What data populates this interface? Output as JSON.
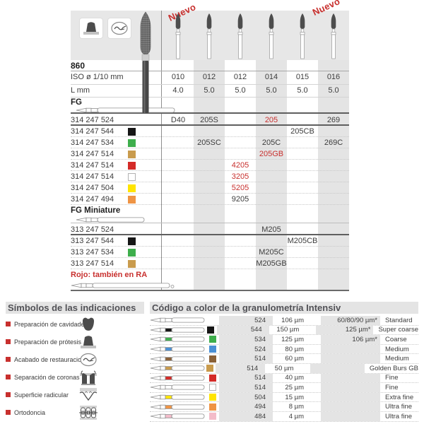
{
  "colors": {
    "red": "#c8302e",
    "chip": {
      "black": "#161616",
      "green": "#3eae4c",
      "gold": "#c99b4d",
      "red": "#d42b28",
      "white": "#ffffff",
      "yellow": "#ffe400",
      "orange": "#ef9444",
      "blue": "#4a90d5",
      "brown": "#8a6138",
      "pink": "#f3bcc9"
    }
  },
  "banner": {
    "nuevo_label": "Nuevo"
  },
  "table": {
    "model": "860",
    "iso_label": "ISO ø 1/10 mm",
    "iso_values": [
      "010",
      "012",
      "012",
      "014",
      "015",
      "016"
    ],
    "l_label": "L mm",
    "l_values": [
      "4.0",
      "5.0",
      "5.0",
      "5.0",
      "5.0",
      "5.0"
    ],
    "fg_label": "FG",
    "fg_rows": [
      {
        "code": "314 247 524",
        "chip": null,
        "heavy": true,
        "values": [
          {
            "col": 1,
            "text": "D40"
          },
          {
            "col": 2,
            "text": "205S"
          },
          {
            "col": 4,
            "text": "205",
            "red": true
          },
          {
            "col": 6,
            "text": "269"
          }
        ]
      },
      {
        "code": "314 247 544",
        "chip": "black",
        "values": [
          {
            "col": 5,
            "text": "205CB"
          }
        ]
      },
      {
        "code": "314 247 534",
        "chip": "green",
        "values": [
          {
            "col": 2,
            "text": "205SC"
          },
          {
            "col": 4,
            "text": "205C"
          },
          {
            "col": 6,
            "text": "269C"
          }
        ]
      },
      {
        "code": "314 247 514",
        "chip": "gold",
        "values": [
          {
            "col": 4,
            "text": "205GB",
            "red": true
          }
        ]
      },
      {
        "code": "314 247 514",
        "chip": "red",
        "values": [
          {
            "col": 3,
            "text": "4205",
            "red": true
          }
        ]
      },
      {
        "code": "314 247 514",
        "chip": "white",
        "values": [
          {
            "col": 3,
            "text": "3205",
            "red": true
          }
        ]
      },
      {
        "code": "314 247 504",
        "chip": "yellow",
        "values": [
          {
            "col": 3,
            "text": "5205",
            "red": true
          }
        ]
      },
      {
        "code": "314 247 494",
        "chip": "orange",
        "values": [
          {
            "col": 3,
            "text": "9205"
          }
        ]
      }
    ],
    "fg_miniature_label": "FG Miniature",
    "fgm_rows": [
      {
        "code": "313 247 524",
        "chip": null,
        "heavy": true,
        "values": [
          {
            "col": 4,
            "text": "M205"
          }
        ]
      },
      {
        "code": "313 247 544",
        "chip": "black",
        "values": [
          {
            "col": 5,
            "text": "M205CB"
          }
        ]
      },
      {
        "code": "313 247 534",
        "chip": "green",
        "values": [
          {
            "col": 4,
            "text": "M205C"
          }
        ]
      },
      {
        "code": "313 247 514",
        "chip": "gold",
        "values": [
          {
            "col": 4,
            "text": "M205GB"
          }
        ]
      }
    ],
    "note_red": "Rojo: también en RA"
  },
  "symbols": {
    "title": "Símbolos de las indicaciones",
    "items": [
      {
        "label": "Preparación de cavidades",
        "icon": "cavity-prep-icon"
      },
      {
        "label": "Preparación de prótesis",
        "icon": "prosthesis-prep-icon"
      },
      {
        "label": "Acabado de restauraciones",
        "icon": "restoration-finish-icon"
      },
      {
        "label": "Separación de coronas",
        "icon": "crown-separation-icon"
      },
      {
        "label": "Superficie radicular",
        "icon": "root-surface-icon"
      },
      {
        "label": "Ortodoncia",
        "icon": "orthodontics-icon"
      }
    ]
  },
  "granulometry": {
    "title": "Código a color de la granulometría Intensiv",
    "rows": [
      {
        "chip": null,
        "code": "524",
        "size": "106 µm",
        "alt": "60/80/90 µm*",
        "name": "Standard"
      },
      {
        "chip": "black",
        "code": "544",
        "size": "150 µm",
        "alt": "125 µm*",
        "name": "Super coarse"
      },
      {
        "chip": "green",
        "code": "534",
        "size": "125 µm",
        "alt": "106 µm*",
        "name": "Coarse"
      },
      {
        "chip": "blue",
        "code": "524",
        "size": "80 µm",
        "alt": "",
        "name": "Medium"
      },
      {
        "chip": "brown",
        "code": "514",
        "size": "60 µm",
        "alt": "",
        "name": "Medium"
      },
      {
        "chip": "gold",
        "code": "514",
        "size": "50 µm",
        "alt": "",
        "name": "Golden Burs GB"
      },
      {
        "chip": "red",
        "code": "514",
        "size": "40 µm",
        "alt": "",
        "name": "Fine"
      },
      {
        "chip": "white",
        "code": "514",
        "size": "25 µm",
        "alt": "",
        "name": "Fine"
      },
      {
        "chip": "yellow",
        "code": "504",
        "size": "15 µm",
        "alt": "",
        "name": "Extra fine"
      },
      {
        "chip": "orange",
        "code": "494",
        "size": "8 µm",
        "alt": "",
        "name": "Ultra fine"
      },
      {
        "chip": "pink",
        "code": "484",
        "size": "4 µm",
        "alt": "",
        "name": "Ultra fine"
      }
    ]
  }
}
